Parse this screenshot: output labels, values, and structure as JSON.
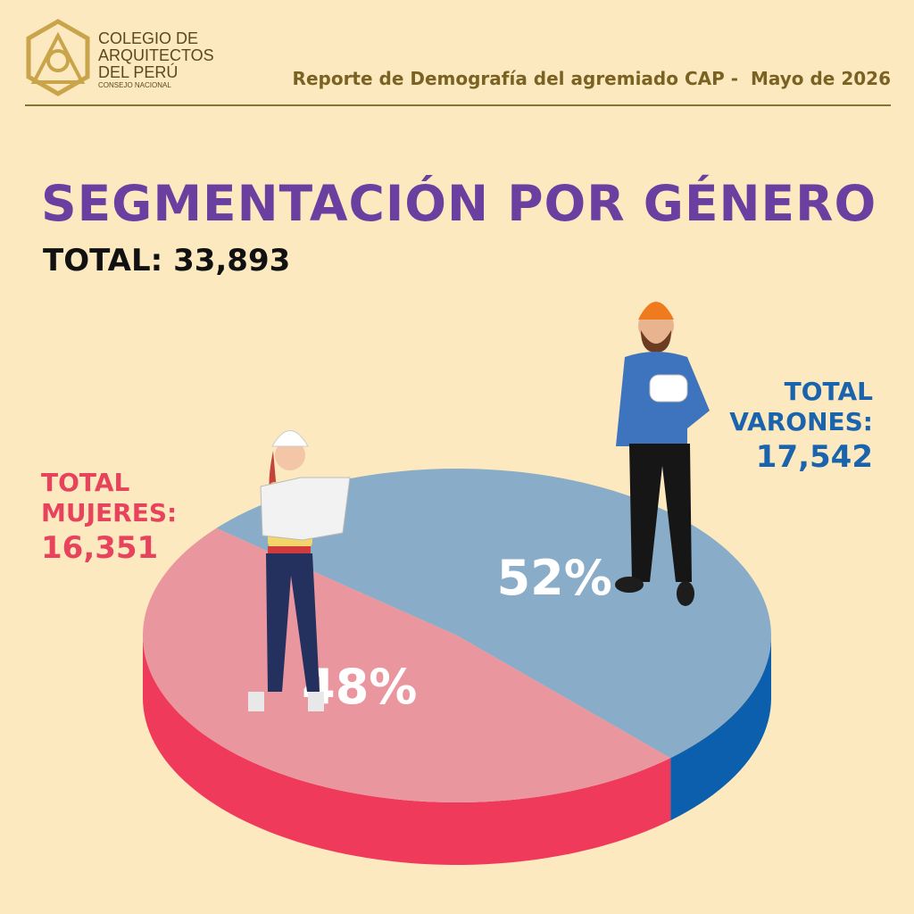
{
  "header": {
    "logo_lines": [
      "COLEGIO DE",
      "ARQUITECTOS",
      "DEL PERÚ"
    ],
    "logo_sub": "CONSEJO NACIONAL",
    "report": "Reporte de Demografía del agremiado CAP -  Mayo de 2026"
  },
  "chart_data": {
    "type": "pie",
    "title": "SEGMENTACIÓN POR GÉNERO",
    "total_label": "TOTAL:",
    "total": {
      "value": 33893,
      "label": "33,893"
    },
    "categories": [
      "TOTAL MUJERES:",
      "TOTAL VARONES:"
    ],
    "values": [
      48,
      52
    ],
    "value_labels": [
      "48%",
      "52%"
    ],
    "totals": [
      {
        "value": 16351,
        "label": "16,351"
      },
      {
        "value": 17542,
        "label": "17,542"
      }
    ],
    "colors": [
      "#e9969f",
      "#89acc8"
    ],
    "side_colors": [
      "#f03a5b",
      "#0b5fad"
    ],
    "label_colors": [
      "#e8435d",
      "#1a63ad"
    ]
  }
}
